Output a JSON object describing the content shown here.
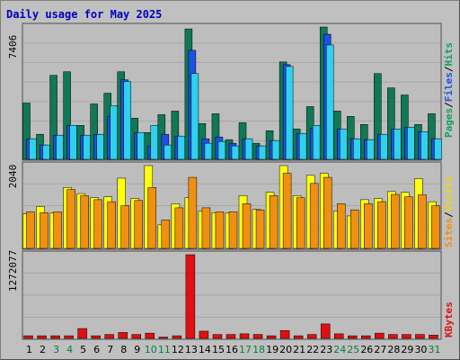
{
  "title": "Daily usage for May 2025",
  "colors": {
    "pages": "#107854",
    "files": "#1e50e6",
    "hits": "#30d0f0",
    "visits": "#ffff10",
    "sites": "#f09010",
    "kbytes": "#e01010",
    "weekday_label": "#000000",
    "weekend_label": "#008040"
  },
  "chart_data": [
    {
      "type": "bar",
      "title": "Daily usage for May 2025",
      "categories": [
        "1",
        "2",
        "3",
        "4",
        "5",
        "6",
        "7",
        "8",
        "9",
        "10",
        "11",
        "12",
        "13",
        "14",
        "15",
        "16",
        "17",
        "18",
        "19",
        "20",
        "21",
        "22",
        "23",
        "24",
        "25",
        "26",
        "27",
        "28",
        "29",
        "30",
        "31"
      ],
      "weekend_days": [
        "3",
        "4",
        "10",
        "11",
        "17",
        "18",
        "24",
        "25",
        "31"
      ],
      "ytick": "7406",
      "ylim": [
        0,
        7406
      ],
      "grid": true,
      "series": [
        {
          "name": "Pages",
          "values": [
            3150,
            1400,
            4700,
            4900,
            1900,
            3100,
            3700,
            4900,
            2300,
            1500,
            2500,
            2700,
            7300,
            2000,
            2550,
            1100,
            2050,
            900,
            1600,
            5450,
            1700,
            2950,
            7406,
            2700,
            2400,
            1950,
            4800,
            4000,
            3600,
            1950,
            2550
          ]
        },
        {
          "name": "Files",
          "values": [
            1150,
            800,
            1350,
            1900,
            1350,
            1400,
            2400,
            4450,
            1500,
            750,
            1400,
            1300,
            6100,
            1150,
            1250,
            900,
            1150,
            750,
            1050,
            5300,
            1450,
            1750,
            7000,
            1700,
            1150,
            1100,
            1400,
            1700,
            1800,
            1550,
            1150
          ]
        },
        {
          "name": "Hits",
          "values": [
            1150,
            800,
            1350,
            1900,
            1350,
            1400,
            3000,
            4350,
            1500,
            1900,
            800,
            1300,
            4800,
            900,
            1000,
            750,
            1150,
            750,
            1050,
            5200,
            1450,
            1900,
            6400,
            1700,
            1150,
            1100,
            1400,
            1700,
            1800,
            1550,
            1150
          ]
        }
      ]
    },
    {
      "type": "bar",
      "categories": [
        "1",
        "2",
        "3",
        "4",
        "5",
        "6",
        "7",
        "8",
        "9",
        "10",
        "11",
        "12",
        "13",
        "14",
        "15",
        "16",
        "17",
        "18",
        "19",
        "20",
        "21",
        "22",
        "23",
        "24",
        "25",
        "26",
        "27",
        "28",
        "29",
        "30",
        "31"
      ],
      "ytick": "2040",
      "ylim": [
        0,
        2040
      ],
      "grid": true,
      "series": [
        {
          "name": "Visits",
          "values": [
            850,
            1030,
            870,
            1500,
            1350,
            1250,
            1270,
            1730,
            1230,
            2040,
            580,
            1100,
            1250,
            920,
            880,
            870,
            1300,
            960,
            1380,
            2040,
            1300,
            1800,
            1850,
            920,
            800,
            1200,
            1230,
            1400,
            1380,
            1720,
            1150
          ]
        },
        {
          "name": "Sites",
          "values": [
            900,
            880,
            900,
            1450,
            1300,
            1200,
            1150,
            1050,
            1180,
            1500,
            700,
            1000,
            1750,
            1000,
            900,
            900,
            1100,
            950,
            1300,
            1850,
            1250,
            1600,
            1750,
            1100,
            950,
            1100,
            1150,
            1330,
            1270,
            1320,
            1050
          ]
        }
      ]
    },
    {
      "type": "bar",
      "categories": [
        "1",
        "2",
        "3",
        "4",
        "5",
        "6",
        "7",
        "8",
        "9",
        "10",
        "11",
        "12",
        "13",
        "14",
        "15",
        "16",
        "17",
        "18",
        "19",
        "20",
        "21",
        "22",
        "23",
        "24",
        "25",
        "26",
        "27",
        "28",
        "29",
        "30",
        "31"
      ],
      "ytick": "1272077",
      "ylim": [
        0,
        1272077
      ],
      "grid": true,
      "series": [
        {
          "name": "KBytes",
          "values": [
            40000,
            40000,
            40000,
            40000,
            150000,
            40000,
            60000,
            90000,
            60000,
            80000,
            20000,
            40000,
            1272077,
            110000,
            60000,
            60000,
            70000,
            60000,
            40000,
            120000,
            40000,
            60000,
            220000,
            70000,
            40000,
            40000,
            80000,
            60000,
            60000,
            60000,
            50000
          ]
        }
      ]
    }
  ],
  "right_labels": [
    {
      "text": "Pages",
      "color": "#10a060"
    },
    {
      "text": "Files",
      "color": "#1e50e6"
    },
    {
      "text": "Hits",
      "color": "#10a060"
    },
    {
      "text": "Sites",
      "color": "#f09010"
    },
    {
      "text": "Visits",
      "color": "#e8d810"
    },
    {
      "text": "KBytes",
      "color": "#e01010"
    }
  ]
}
